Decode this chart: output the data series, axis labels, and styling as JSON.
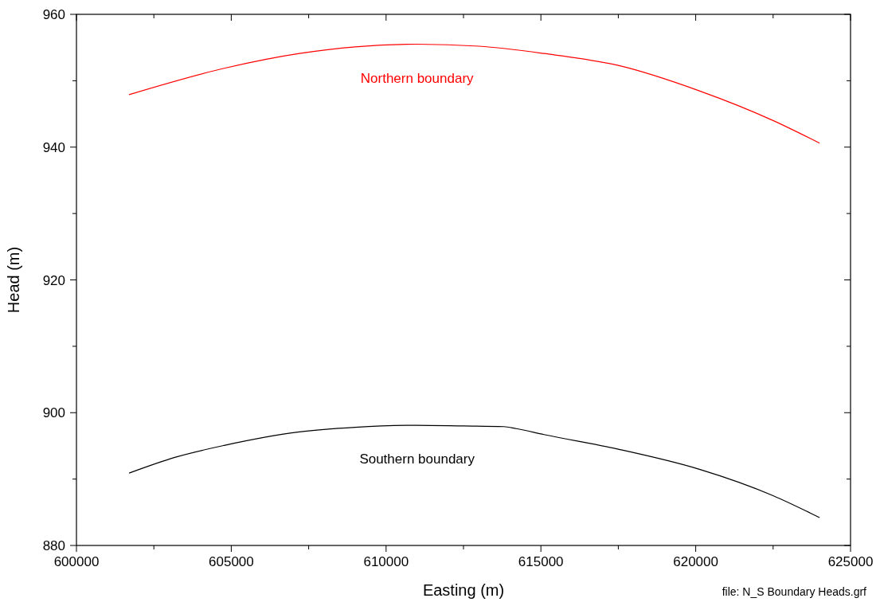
{
  "chart_data": {
    "type": "line",
    "xlabel": "Easting (m)",
    "ylabel": "Head (m)",
    "xlim": [
      600000,
      625000
    ],
    "xticks": [
      600000,
      {
        "value": 602500,
        "label": null
      },
      605000,
      {
        "value": 607500,
        "label": null
      },
      610000,
      {
        "value": 612500,
        "label": null
      },
      615000,
      {
        "value": 617500,
        "label": null
      },
      620000,
      {
        "value": 622500,
        "label": null
      },
      625000
    ],
    "ylim": [
      880,
      960
    ],
    "yticks": [
      880,
      {
        "value": 890,
        "label": null
      },
      900,
      {
        "value": 910,
        "label": null
      },
      920,
      {
        "value": 930,
        "label": null
      },
      940,
      {
        "value": 950,
        "label": null
      },
      960
    ],
    "grid": false,
    "legend": false,
    "marker": "none",
    "line_style": "solid",
    "series": [
      {
        "name": "Northern boundary",
        "color": "#ff0000",
        "x": [
          601700,
          604800,
          607200,
          609000,
          611000,
          613000,
          615100,
          617500,
          620100,
          622500,
          624000
        ],
        "values": [
          947.9,
          951.9,
          954.1,
          955.1,
          955.5,
          955.2,
          954.1,
          952.3,
          948.5,
          944.0,
          940.6
        ]
      },
      {
        "name": "Southern boundary",
        "color": "#000000",
        "x": [
          601700,
          603200,
          604800,
          607200,
          609000,
          611000,
          612500,
          613800,
          614200,
          615100,
          617500,
          620100,
          622500,
          624000
        ],
        "values": [
          890.9,
          893.3,
          895.1,
          897.1,
          897.8,
          898.1,
          898.0,
          897.9,
          897.6,
          896.7,
          894.5,
          891.5,
          887.5,
          884.2
        ]
      }
    ],
    "annotations": [
      "file: N_S Boundary Heads.grf"
    ]
  }
}
